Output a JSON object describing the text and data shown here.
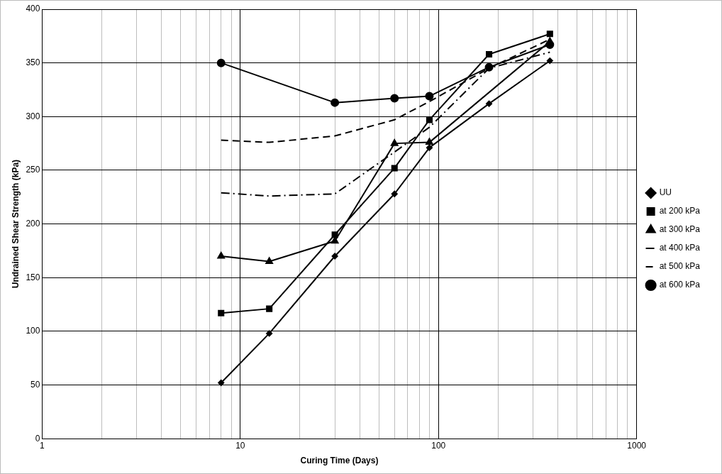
{
  "chart_data": {
    "type": "line",
    "xlabel": "Curing Time (Days)",
    "ylabel": "Undrained Shear Strength (kPa)",
    "x": [
      8,
      14,
      30,
      60,
      90,
      180,
      365
    ],
    "series": [
      {
        "name": "UU",
        "color": "#000000",
        "marker": "diamond",
        "line_style": "solid",
        "values": [
          52,
          98,
          170,
          228,
          271,
          312,
          352
        ]
      },
      {
        "name": "at 200 kPa",
        "color": "#000000",
        "marker": "square",
        "line_style": "solid",
        "values": [
          117,
          121,
          190,
          252,
          297,
          358,
          377
        ]
      },
      {
        "name": "at 300 kPa",
        "color": "#000000",
        "marker": "triangle",
        "line_style": "solid",
        "values": [
          170,
          165,
          184,
          275,
          276,
          null,
          370
        ]
      },
      {
        "name": "at 400 kPa",
        "color": "#000000",
        "marker": "none",
        "line_style": "dashdot",
        "values": [
          229,
          226,
          228,
          267,
          290,
          345,
          360
        ]
      },
      {
        "name": "at 500 kPa",
        "color": "#000000",
        "marker": "none",
        "line_style": "dashed",
        "values": [
          278,
          276,
          282,
          297,
          314,
          345,
          372
        ]
      },
      {
        "name": "at 600 kPa",
        "color": "#000000",
        "marker": "circle",
        "line_style": "solid",
        "values": [
          350,
          null,
          313,
          317,
          319,
          346,
          367
        ]
      }
    ],
    "log": "x",
    "xlim": [
      1,
      1000
    ],
    "xticks": [
      1,
      {
        "value": 2,
        "label": null
      },
      {
        "value": 3,
        "label": null
      },
      {
        "value": 4,
        "label": null
      },
      {
        "value": 5,
        "label": null
      },
      {
        "value": 6,
        "label": null
      },
      {
        "value": 7,
        "label": null
      },
      {
        "value": 8,
        "label": null
      },
      {
        "value": 9,
        "label": null
      },
      10,
      {
        "value": 20,
        "label": null
      },
      {
        "value": 30,
        "label": null
      },
      {
        "value": 40,
        "label": null
      },
      {
        "value": 50,
        "label": null
      },
      {
        "value": 60,
        "label": null
      },
      {
        "value": 70,
        "label": null
      },
      {
        "value": 80,
        "label": null
      },
      {
        "value": 90,
        "label": null
      },
      100,
      {
        "value": 200,
        "label": null
      },
      {
        "value": 300,
        "label": null
      },
      {
        "value": 400,
        "label": null
      },
      {
        "value": 500,
        "label": null
      },
      {
        "value": 600,
        "label": null
      },
      {
        "value": 700,
        "label": null
      },
      {
        "value": 800,
        "label": null
      },
      {
        "value": 900,
        "label": null
      },
      1000
    ],
    "ylim": [
      0,
      400
    ],
    "yticks": [
      0,
      50,
      100,
      150,
      200,
      250,
      300,
      350,
      400
    ],
    "grid": true,
    "legend": "right"
  }
}
